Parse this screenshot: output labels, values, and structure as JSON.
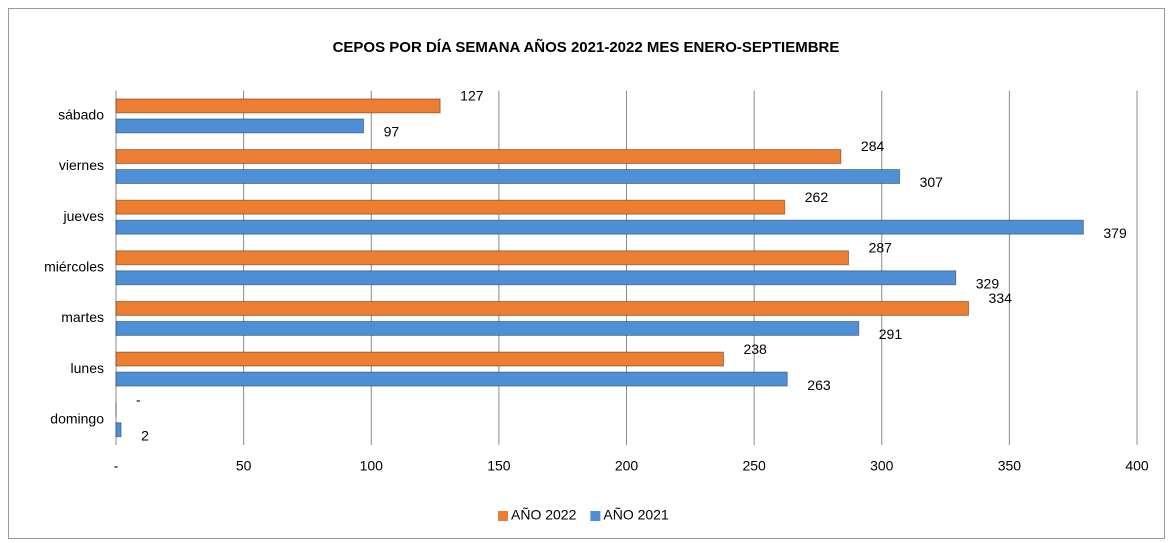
{
  "chart_data": {
    "type": "hbar",
    "title": "CEPOS  POR DÍA SEMANA AÑOS 2021-2022 MES ENERO-SEPTIEMBRE",
    "categories": [
      "domingo",
      "lunes",
      "martes",
      "miércoles",
      "jueves",
      "viernes",
      "sábado"
    ],
    "series": [
      {
        "name": "AÑO 2022",
        "color": "#ed7d31",
        "values": [
          0,
          238,
          334,
          287,
          262,
          284,
          127
        ],
        "value_labels": [
          "-",
          "238",
          "334",
          "287",
          "262",
          "284",
          "127"
        ]
      },
      {
        "name": "AÑO 2021",
        "color": "#4f8fd6",
        "values": [
          2,
          263,
          291,
          329,
          379,
          307,
          97
        ]
      }
    ],
    "xlim": [
      0,
      400
    ],
    "xticks": [
      {
        "value": 0,
        "label": "-"
      },
      50,
      100,
      150,
      200,
      250,
      300,
      350,
      400
    ],
    "grid": true,
    "legend": "bottom"
  }
}
